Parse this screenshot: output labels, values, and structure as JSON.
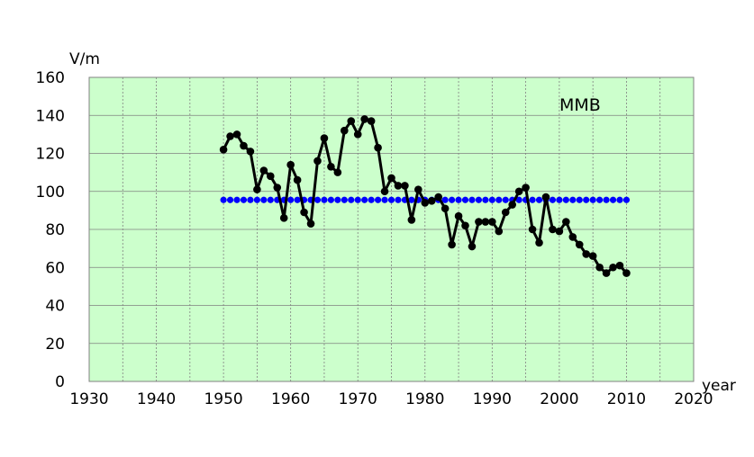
{
  "chart_data": {
    "type": "line",
    "ylabel": "V/m",
    "xlabel": "year",
    "xlim": [
      1930,
      2020
    ],
    "ylim": [
      0,
      160
    ],
    "x_ticks": [
      "1930",
      "1940",
      "1950",
      "1960",
      "1970",
      "1980",
      "1990",
      "2000",
      "2010",
      "2020"
    ],
    "y_ticks": [
      "0",
      "20",
      "40",
      "60",
      "80",
      "100",
      "120",
      "140",
      "160"
    ],
    "annotation": "MMB",
    "grid": true,
    "colors": {
      "plot_bg": "#ccffcc",
      "grid": "#808080",
      "main_series": "#000000",
      "mean_series": "#0000ff"
    },
    "series": [
      {
        "x": [
          1950,
          1951,
          1952,
          1953,
          1954,
          1955,
          1956,
          1957,
          1958,
          1959,
          1960,
          1961,
          1962,
          1963,
          1964,
          1965,
          1966,
          1967,
          1968,
          1969,
          1970,
          1971,
          1972,
          1973,
          1974,
          1975,
          1976,
          1977,
          1978,
          1979,
          1980,
          1981,
          1982,
          1983,
          1984,
          1985,
          1986,
          1987,
          1988,
          1989,
          1990,
          1991,
          1992,
          1993,
          1994,
          1995,
          1996,
          1997,
          1998,
          1999,
          2000,
          2001,
          2002,
          2003,
          2004,
          2005,
          2006,
          2007,
          2008,
          2009,
          2010
        ],
        "values": [
          122,
          129,
          130,
          124,
          121,
          101,
          111,
          108,
          102,
          86,
          114,
          106,
          89,
          83,
          116,
          128,
          113,
          110,
          132,
          137,
          130,
          138,
          137,
          123,
          100,
          107,
          103,
          103,
          85,
          101,
          94,
          95,
          97,
          91,
          72,
          87,
          82,
          71,
          84,
          84,
          84,
          79,
          89,
          93,
          100,
          102,
          80,
          73,
          97,
          80,
          79,
          84,
          76,
          72,
          67,
          66,
          60,
          57,
          60,
          61,
          57
        ]
      },
      {
        "x": [
          1950,
          1951,
          1952,
          1953,
          1954,
          1955,
          1956,
          1957,
          1958,
          1959,
          1960,
          1961,
          1962,
          1963,
          1964,
          1965,
          1966,
          1967,
          1968,
          1969,
          1970,
          1971,
          1972,
          1973,
          1974,
          1975,
          1976,
          1977,
          1978,
          1979,
          1980,
          1981,
          1982,
          1983,
          1984,
          1985,
          1986,
          1987,
          1988,
          1989,
          1990,
          1991,
          1992,
          1993,
          1994,
          1995,
          1996,
          1997,
          1998,
          1999,
          2000,
          2001,
          2002,
          2003,
          2004,
          2005,
          2006,
          2007,
          2008,
          2009,
          2010
        ],
        "values": [
          95.5,
          95.5,
          95.5,
          95.5,
          95.5,
          95.5,
          95.5,
          95.5,
          95.5,
          95.5,
          95.5,
          95.5,
          95.5,
          95.5,
          95.5,
          95.5,
          95.5,
          95.5,
          95.5,
          95.5,
          95.5,
          95.5,
          95.5,
          95.5,
          95.5,
          95.5,
          95.5,
          95.5,
          95.5,
          95.5,
          95.5,
          95.5,
          95.5,
          95.5,
          95.5,
          95.5,
          95.5,
          95.5,
          95.5,
          95.5,
          95.5,
          95.5,
          95.5,
          95.5,
          95.5,
          95.5,
          95.5,
          95.5,
          95.5,
          95.5,
          95.5,
          95.5,
          95.5,
          95.5,
          95.5,
          95.5,
          95.5,
          95.5,
          95.5,
          95.5,
          95.5
        ]
      }
    ]
  }
}
